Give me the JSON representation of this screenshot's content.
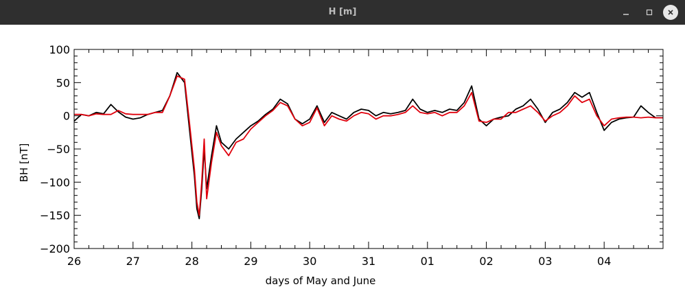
{
  "window": {
    "title": "H [m]",
    "buttons": {
      "minimize_icon": "minimize-icon",
      "maximize_icon": "maximize-icon",
      "close_icon": "close-icon"
    }
  },
  "chart_data": {
    "type": "line",
    "title": "",
    "xlabel": "days of May and June",
    "ylabel": "BH [nT]",
    "xlim": [
      "2024-05-26T00:00",
      "2024-06-05T00:00"
    ],
    "ylim": [
      -200,
      100
    ],
    "x_ticks": [
      {
        "t": "2024-05-26T00:00",
        "label": "26"
      },
      {
        "t": "2024-05-27T00:00",
        "label": "27"
      },
      {
        "t": "2024-05-28T00:00",
        "label": "28"
      },
      {
        "t": "2024-05-29T00:00",
        "label": "29"
      },
      {
        "t": "2024-05-30T00:00",
        "label": "30"
      },
      {
        "t": "2024-05-31T00:00",
        "label": "31"
      },
      {
        "t": "2024-06-01T00:00",
        "label": "01"
      },
      {
        "t": "2024-06-02T00:00",
        "label": "02"
      },
      {
        "t": "2024-06-03T00:00",
        "label": "03"
      },
      {
        "t": "2024-06-04T00:00",
        "label": "04"
      }
    ],
    "y_ticks": [
      100,
      50,
      0,
      -50,
      -100,
      -150,
      -200
    ],
    "y_tick_labels": [
      "100",
      "50",
      "0",
      "−50",
      "−100",
      "−150",
      "−200"
    ],
    "grid": false,
    "colors": {
      "series1": "#000000",
      "series2": "#e0000c"
    },
    "series": [
      {
        "color": "#000000",
        "points": [
          [
            "2024-05-26T00:00",
            -8
          ],
          [
            "2024-05-26T03:00",
            2
          ],
          [
            "2024-05-26T06:00",
            0
          ],
          [
            "2024-05-26T09:00",
            5
          ],
          [
            "2024-05-26T12:00",
            3
          ],
          [
            "2024-05-26T15:00",
            17
          ],
          [
            "2024-05-26T18:00",
            6
          ],
          [
            "2024-05-26T21:00",
            -2
          ],
          [
            "2024-05-27T00:00",
            -5
          ],
          [
            "2024-05-27T03:00",
            -3
          ],
          [
            "2024-05-27T06:00",
            2
          ],
          [
            "2024-05-27T09:00",
            5
          ],
          [
            "2024-05-27T12:00",
            8
          ],
          [
            "2024-05-27T15:00",
            30
          ],
          [
            "2024-05-27T18:00",
            65
          ],
          [
            "2024-05-27T21:00",
            50
          ],
          [
            "2024-05-27T23:00",
            -20
          ],
          [
            "2024-05-28T01:00",
            -90
          ],
          [
            "2024-05-28T02:00",
            -140
          ],
          [
            "2024-05-28T03:00",
            -155
          ],
          [
            "2024-05-28T04:00",
            -110
          ],
          [
            "2024-05-28T05:00",
            -50
          ],
          [
            "2024-05-28T06:00",
            -110
          ],
          [
            "2024-05-28T08:00",
            -60
          ],
          [
            "2024-05-28T10:00",
            -15
          ],
          [
            "2024-05-28T12:00",
            -40
          ],
          [
            "2024-05-28T15:00",
            -50
          ],
          [
            "2024-05-28T18:00",
            -35
          ],
          [
            "2024-05-28T21:00",
            -25
          ],
          [
            "2024-05-29T00:00",
            -15
          ],
          [
            "2024-05-29T03:00",
            -8
          ],
          [
            "2024-05-29T06:00",
            2
          ],
          [
            "2024-05-29T09:00",
            10
          ],
          [
            "2024-05-29T12:00",
            25
          ],
          [
            "2024-05-29T15:00",
            18
          ],
          [
            "2024-05-29T18:00",
            -5
          ],
          [
            "2024-05-29T21:00",
            -12
          ],
          [
            "2024-05-30T00:00",
            -5
          ],
          [
            "2024-05-30T03:00",
            15
          ],
          [
            "2024-05-30T06:00",
            -10
          ],
          [
            "2024-05-30T09:00",
            5
          ],
          [
            "2024-05-30T12:00",
            0
          ],
          [
            "2024-05-30T15:00",
            -5
          ],
          [
            "2024-05-30T18:00",
            5
          ],
          [
            "2024-05-30T21:00",
            10
          ],
          [
            "2024-05-31T00:00",
            8
          ],
          [
            "2024-05-31T03:00",
            0
          ],
          [
            "2024-05-31T06:00",
            5
          ],
          [
            "2024-05-31T09:00",
            3
          ],
          [
            "2024-05-31T12:00",
            5
          ],
          [
            "2024-05-31T15:00",
            8
          ],
          [
            "2024-05-31T18:00",
            25
          ],
          [
            "2024-05-31T21:00",
            10
          ],
          [
            "2024-06-01T00:00",
            5
          ],
          [
            "2024-06-01T03:00",
            8
          ],
          [
            "2024-06-01T06:00",
            5
          ],
          [
            "2024-06-01T09:00",
            10
          ],
          [
            "2024-06-01T12:00",
            8
          ],
          [
            "2024-06-01T15:00",
            20
          ],
          [
            "2024-06-01T18:00",
            45
          ],
          [
            "2024-06-01T21:00",
            -5
          ],
          [
            "2024-06-02T00:00",
            -15
          ],
          [
            "2024-06-02T03:00",
            -5
          ],
          [
            "2024-06-02T06:00",
            -2
          ],
          [
            "2024-06-02T09:00",
            0
          ],
          [
            "2024-06-02T12:00",
            10
          ],
          [
            "2024-06-02T15:00",
            15
          ],
          [
            "2024-06-02T18:00",
            25
          ],
          [
            "2024-06-02T21:00",
            10
          ],
          [
            "2024-06-03T00:00",
            -10
          ],
          [
            "2024-06-03T03:00",
            5
          ],
          [
            "2024-06-03T06:00",
            10
          ],
          [
            "2024-06-03T09:00",
            20
          ],
          [
            "2024-06-03T12:00",
            35
          ],
          [
            "2024-06-03T15:00",
            28
          ],
          [
            "2024-06-03T18:00",
            35
          ],
          [
            "2024-06-03T21:00",
            5
          ],
          [
            "2024-06-04T00:00",
            -22
          ],
          [
            "2024-06-04T03:00",
            -10
          ],
          [
            "2024-06-04T06:00",
            -5
          ],
          [
            "2024-06-04T09:00",
            -3
          ],
          [
            "2024-06-04T12:00",
            -2
          ],
          [
            "2024-06-04T15:00",
            15
          ],
          [
            "2024-06-04T18:00",
            5
          ],
          [
            "2024-06-04T21:00",
            -3
          ],
          [
            "2024-06-05T00:00",
            -3
          ]
        ]
      },
      {
        "color": "#e0000c",
        "points": [
          [
            "2024-05-26T00:00",
            2
          ],
          [
            "2024-05-26T03:00",
            2
          ],
          [
            "2024-05-26T06:00",
            0
          ],
          [
            "2024-05-26T09:00",
            3
          ],
          [
            "2024-05-26T12:00",
            2
          ],
          [
            "2024-05-26T15:00",
            2
          ],
          [
            "2024-05-26T18:00",
            8
          ],
          [
            "2024-05-26T21:00",
            3
          ],
          [
            "2024-05-27T00:00",
            2
          ],
          [
            "2024-05-27T03:00",
            2
          ],
          [
            "2024-05-27T06:00",
            2
          ],
          [
            "2024-05-27T09:00",
            5
          ],
          [
            "2024-05-27T12:00",
            5
          ],
          [
            "2024-05-27T15:00",
            30
          ],
          [
            "2024-05-27T18:00",
            60
          ],
          [
            "2024-05-27T21:00",
            55
          ],
          [
            "2024-05-27T23:00",
            -10
          ],
          [
            "2024-05-28T01:00",
            -80
          ],
          [
            "2024-05-28T02:00",
            -130
          ],
          [
            "2024-05-28T03:00",
            -150
          ],
          [
            "2024-05-28T04:00",
            -100
          ],
          [
            "2024-05-28T05:00",
            -35
          ],
          [
            "2024-05-28T06:00",
            -125
          ],
          [
            "2024-05-28T08:00",
            -70
          ],
          [
            "2024-05-28T10:00",
            -25
          ],
          [
            "2024-05-28T12:00",
            -45
          ],
          [
            "2024-05-28T15:00",
            -60
          ],
          [
            "2024-05-28T18:00",
            -40
          ],
          [
            "2024-05-28T21:00",
            -35
          ],
          [
            "2024-05-29T00:00",
            -20
          ],
          [
            "2024-05-29T03:00",
            -10
          ],
          [
            "2024-05-29T06:00",
            0
          ],
          [
            "2024-05-29T09:00",
            8
          ],
          [
            "2024-05-29T12:00",
            20
          ],
          [
            "2024-05-29T15:00",
            15
          ],
          [
            "2024-05-29T18:00",
            -5
          ],
          [
            "2024-05-29T21:00",
            -15
          ],
          [
            "2024-05-30T00:00",
            -10
          ],
          [
            "2024-05-30T03:00",
            12
          ],
          [
            "2024-05-30T06:00",
            -15
          ],
          [
            "2024-05-30T09:00",
            0
          ],
          [
            "2024-05-30T12:00",
            -5
          ],
          [
            "2024-05-30T15:00",
            -8
          ],
          [
            "2024-05-30T18:00",
            0
          ],
          [
            "2024-05-30T21:00",
            5
          ],
          [
            "2024-05-31T00:00",
            3
          ],
          [
            "2024-05-31T03:00",
            -5
          ],
          [
            "2024-05-31T06:00",
            0
          ],
          [
            "2024-05-31T09:00",
            0
          ],
          [
            "2024-05-31T12:00",
            2
          ],
          [
            "2024-05-31T15:00",
            5
          ],
          [
            "2024-05-31T18:00",
            15
          ],
          [
            "2024-05-31T21:00",
            5
          ],
          [
            "2024-06-01T00:00",
            3
          ],
          [
            "2024-06-01T03:00",
            5
          ],
          [
            "2024-06-01T06:00",
            0
          ],
          [
            "2024-06-01T09:00",
            5
          ],
          [
            "2024-06-01T12:00",
            5
          ],
          [
            "2024-06-01T15:00",
            15
          ],
          [
            "2024-06-01T18:00",
            35
          ],
          [
            "2024-06-01T21:00",
            -8
          ],
          [
            "2024-06-02T00:00",
            -10
          ],
          [
            "2024-06-02T03:00",
            -5
          ],
          [
            "2024-06-02T06:00",
            -5
          ],
          [
            "2024-06-02T09:00",
            5
          ],
          [
            "2024-06-02T12:00",
            5
          ],
          [
            "2024-06-02T15:00",
            10
          ],
          [
            "2024-06-02T18:00",
            15
          ],
          [
            "2024-06-02T21:00",
            5
          ],
          [
            "2024-06-03T00:00",
            -8
          ],
          [
            "2024-06-03T03:00",
            0
          ],
          [
            "2024-06-03T06:00",
            5
          ],
          [
            "2024-06-03T09:00",
            15
          ],
          [
            "2024-06-03T12:00",
            30
          ],
          [
            "2024-06-03T15:00",
            20
          ],
          [
            "2024-06-03T18:00",
            25
          ],
          [
            "2024-06-03T21:00",
            0
          ],
          [
            "2024-06-04T00:00",
            -15
          ],
          [
            "2024-06-04T03:00",
            -5
          ],
          [
            "2024-06-04T06:00",
            -3
          ],
          [
            "2024-06-04T09:00",
            -2
          ],
          [
            "2024-06-04T12:00",
            -2
          ],
          [
            "2024-06-04T15:00",
            -3
          ],
          [
            "2024-06-04T18:00",
            -2
          ],
          [
            "2024-06-04T21:00",
            -3
          ],
          [
            "2024-06-05T00:00",
            -3
          ]
        ]
      }
    ]
  }
}
